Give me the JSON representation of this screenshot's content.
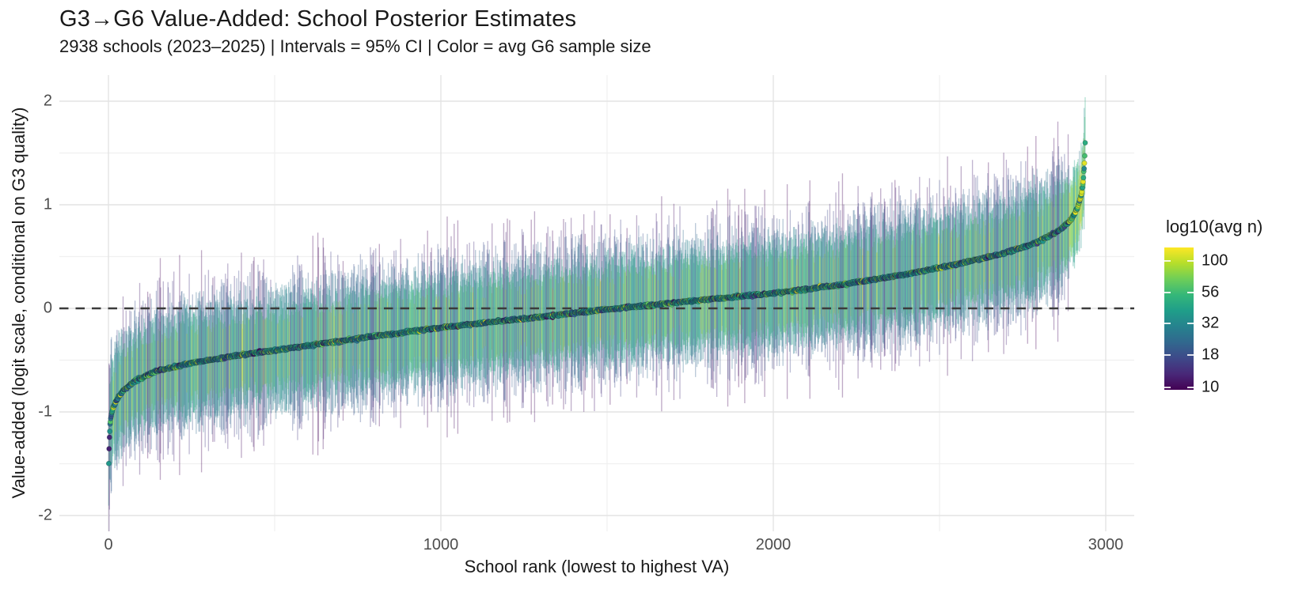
{
  "header": {
    "title": "G3→G6 Value-Added: School Posterior Estimates",
    "subtitle": "2938 schools (2023–2025) | Intervals = 95% CI | Color = avg G6 sample size"
  },
  "chart_data": {
    "type": "scatter",
    "variant": "caterpillar-interval-plot",
    "title": "G3→G6 Value-Added: School Posterior Estimates",
    "subtitle": "2938 schools (2023–2025) | Intervals = 95% CI | Color = avg G6 sample size",
    "xlabel": "School rank (lowest to highest VA)",
    "ylabel": "Value-added (logit scale, conditional on G3 quality)",
    "n_points": 2938,
    "x_range": [
      1,
      2938
    ],
    "xlim": [
      -148,
      3086
    ],
    "ylim": [
      -2.15,
      2.25
    ],
    "x_ticks": [
      0,
      1000,
      2000,
      3000
    ],
    "x_minor_ticks": [
      500,
      1500,
      2500
    ],
    "y_ticks": [
      2,
      1,
      0,
      -1,
      -2
    ],
    "y_minor_ticks": [
      1.5,
      0.5,
      -0.5,
      -1.5
    ],
    "grid": {
      "major_color": "#e3e3e3",
      "minor_color": "#f0f0f0"
    },
    "reference_line": {
      "y": 0,
      "style": "dashed",
      "color": "#3b3b3b"
    },
    "va_curve": {
      "comment_ranks_are_sorted_school_rank": "posterior mean value-added read off the plotted curve",
      "ranks": [
        1,
        2,
        3,
        5,
        8,
        14,
        25,
        45,
        80,
        140,
        245,
        400,
        600,
        800,
        1000,
        1250,
        1500,
        1750,
        2000,
        2200,
        2400,
        2550,
        2680,
        2780,
        2850,
        2895,
        2915,
        2926,
        2932,
        2935,
        2937,
        2938
      ],
      "values": [
        -1.5,
        -1.36,
        -1.24,
        -1.12,
        -1.04,
        -0.96,
        -0.88,
        -0.79,
        -0.7,
        -0.61,
        -0.53,
        -0.45,
        -0.36,
        -0.27,
        -0.185,
        -0.1,
        -0.01,
        0.07,
        0.145,
        0.225,
        0.33,
        0.425,
        0.52,
        0.62,
        0.73,
        0.85,
        0.97,
        1.09,
        1.22,
        1.35,
        1.47,
        1.6
      ]
    },
    "ci": {
      "level": "95% CI",
      "halfwidth_scale": 2.9,
      "halfwidth_jitter_range": [
        0.82,
        1.18
      ],
      "typical_halfwidth": 0.5,
      "max_whisker_reach": 2.05,
      "min_whisker_reach": -1.95
    },
    "color_scale": {
      "legend_title": "log10(avg n)",
      "legend_tick_values": [
        100,
        56,
        32,
        18,
        10
      ],
      "domain_log10": [
        0.981,
        2.106
      ],
      "palette": "viridis",
      "palette_stops": [
        "#440154",
        "#482878",
        "#3e4989",
        "#31688e",
        "#26828e",
        "#1f9e89",
        "#35b779",
        "#6ece58",
        "#b5de2b",
        "#fde725"
      ]
    },
    "style": {
      "seed": 1234567,
      "interval_opacity": 0.34,
      "interval_width": 1.35,
      "point_radius": 3.1,
      "log10n_mean": 1.56,
      "log10n_sd": 0.25,
      "log10n_range": [
        1.0,
        2.06
      ],
      "top_tail_log10n_boost": 0.22,
      "first_points_log10n": [
        1.58,
        1.08,
        1.1,
        1.55
      ],
      "value_jitter_sd": 0.006
    }
  },
  "axes": {
    "x_tick_labels": [
      "0",
      "1000",
      "2000",
      "3000"
    ],
    "y_tick_labels": [
      "2",
      "1",
      "0",
      "-1",
      "-2"
    ]
  },
  "legend": {
    "title": "log10(avg n)",
    "tick_labels": [
      "100",
      "56",
      "32",
      "18",
      "10"
    ]
  }
}
